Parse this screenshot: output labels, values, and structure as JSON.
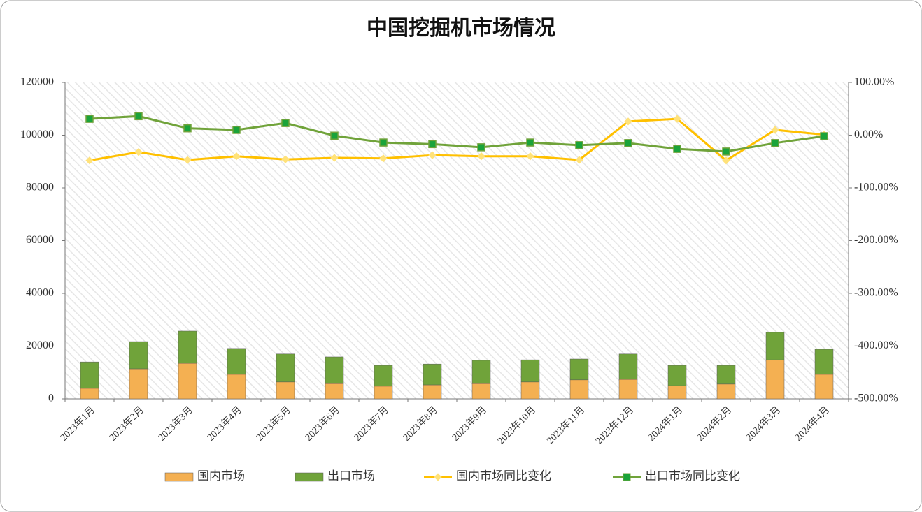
{
  "chart_data": {
    "type": "bar-line",
    "title": "中国挖掘机市场情况",
    "categories": [
      "2023年1月",
      "2023年2月",
      "2023年3月",
      "2023年4月",
      "2023年5月",
      "2023年6月",
      "2023年7月",
      "2023年8月",
      "2023年9月",
      "2023年10月",
      "2023年11月",
      "2023年12月",
      "2024年1月",
      "2024年2月",
      "2024年3月",
      "2024年4月"
    ],
    "series": [
      {
        "name": "国内市场",
        "type": "bar",
        "color": "#f4b052",
        "values": [
          4000,
          11400,
          13500,
          9300,
          6400,
          5800,
          4800,
          5300,
          5800,
          6400,
          7200,
          7400,
          5000,
          5600,
          14800,
          9300
        ]
      },
      {
        "name": "出口市场",
        "type": "bar",
        "color": "#70a33a",
        "values": [
          10000,
          10300,
          12200,
          9800,
          10600,
          10100,
          7900,
          7900,
          8800,
          8400,
          7900,
          9600,
          7700,
          7100,
          10400,
          9500
        ]
      },
      {
        "name": "国内市场同比变化",
        "type": "line",
        "axis": "y2",
        "color": "#ffc000",
        "marker_color": "#ffe27a",
        "values": [
          -48,
          -32,
          -47,
          -40,
          -46,
          -43,
          -44,
          -38,
          -40,
          -40,
          -47,
          26,
          31,
          -48,
          10,
          1
        ]
      },
      {
        "name": "出口市场同比变化",
        "type": "line",
        "axis": "y2",
        "color": "#70a33a",
        "marker_color": "#1aa33a",
        "values": [
          31,
          36,
          13,
          10,
          23,
          -1,
          -14,
          -17,
          -23,
          -14,
          -19,
          -15,
          -26,
          -31,
          -15,
          -2
        ]
      }
    ],
    "ylim": [
      0,
      120000
    ],
    "yticks": [
      0,
      20000,
      40000,
      60000,
      80000,
      100000,
      120000
    ],
    "y2lim": [
      -500,
      100
    ],
    "y2ticks": [
      {
        "value": -500,
        "label": "-500.00%"
      },
      {
        "value": -400,
        "label": "-400.00%"
      },
      {
        "value": -300,
        "label": "-300.00%"
      },
      {
        "value": -200,
        "label": "-200.00%"
      },
      {
        "value": -100,
        "label": "-100.00%"
      },
      {
        "value": 0,
        "label": "0.00%"
      },
      {
        "value": 100,
        "label": "100.00%"
      }
    ]
  }
}
